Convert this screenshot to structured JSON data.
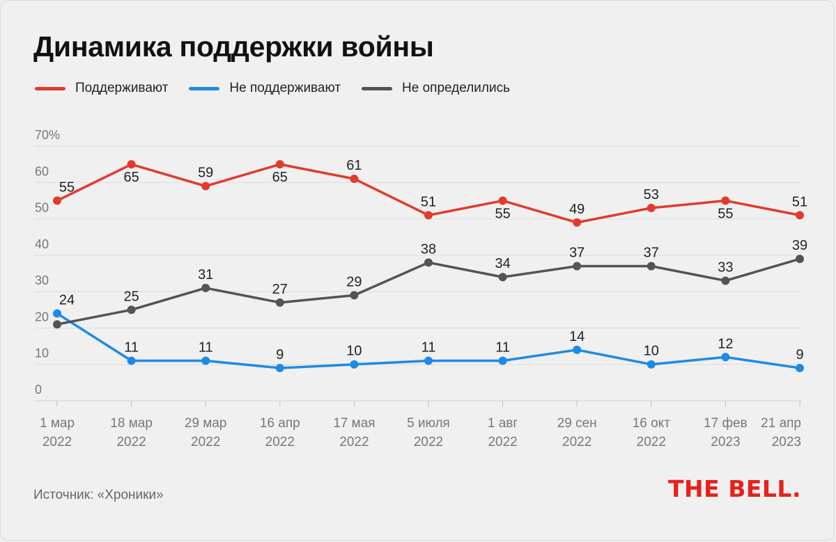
{
  "title": "Динамика поддержки войны",
  "source": "Источник: «Хроники»",
  "logo": "THE BELL.",
  "colors": {
    "support": "#e23a2b",
    "oppose": "#1e8ae6",
    "undecided": "#545454",
    "grid": "#dcdcdc",
    "axis_text": "#777777",
    "label_text": "#222222"
  },
  "chart_data": {
    "type": "line",
    "title": "Динамика поддержки войны",
    "xlabel": "",
    "ylabel": "",
    "ylim": [
      0,
      70
    ],
    "yticks": [
      "0",
      "10",
      "20",
      "30",
      "40",
      "50",
      "60",
      "70%"
    ],
    "categories": [
      [
        "1 мар",
        "2022"
      ],
      [
        "18 мар",
        "2022"
      ],
      [
        "29 мар",
        "2022"
      ],
      [
        "16 апр",
        "2022"
      ],
      [
        "17 мая",
        "2022"
      ],
      [
        "5 июля",
        "2022"
      ],
      [
        "1 авг",
        "2022"
      ],
      [
        "29 сен",
        "2022"
      ],
      [
        "16 окт",
        "2022"
      ],
      [
        "17 фев",
        "2023"
      ],
      [
        "21 апр",
        "2023"
      ]
    ],
    "series": [
      {
        "key": "support",
        "name": "Поддерживают",
        "values": [
          55,
          65,
          59,
          65,
          61,
          51,
          55,
          49,
          53,
          55,
          51
        ]
      },
      {
        "key": "oppose",
        "name": "Не поддерживают",
        "values": [
          24,
          11,
          11,
          9,
          10,
          11,
          11,
          14,
          10,
          12,
          9
        ]
      },
      {
        "key": "undecided",
        "name": "Не определились",
        "values": [
          21,
          25,
          31,
          27,
          29,
          38,
          34,
          37,
          37,
          33,
          39
        ]
      }
    ],
    "grid": true,
    "legend_position": "top-left"
  }
}
